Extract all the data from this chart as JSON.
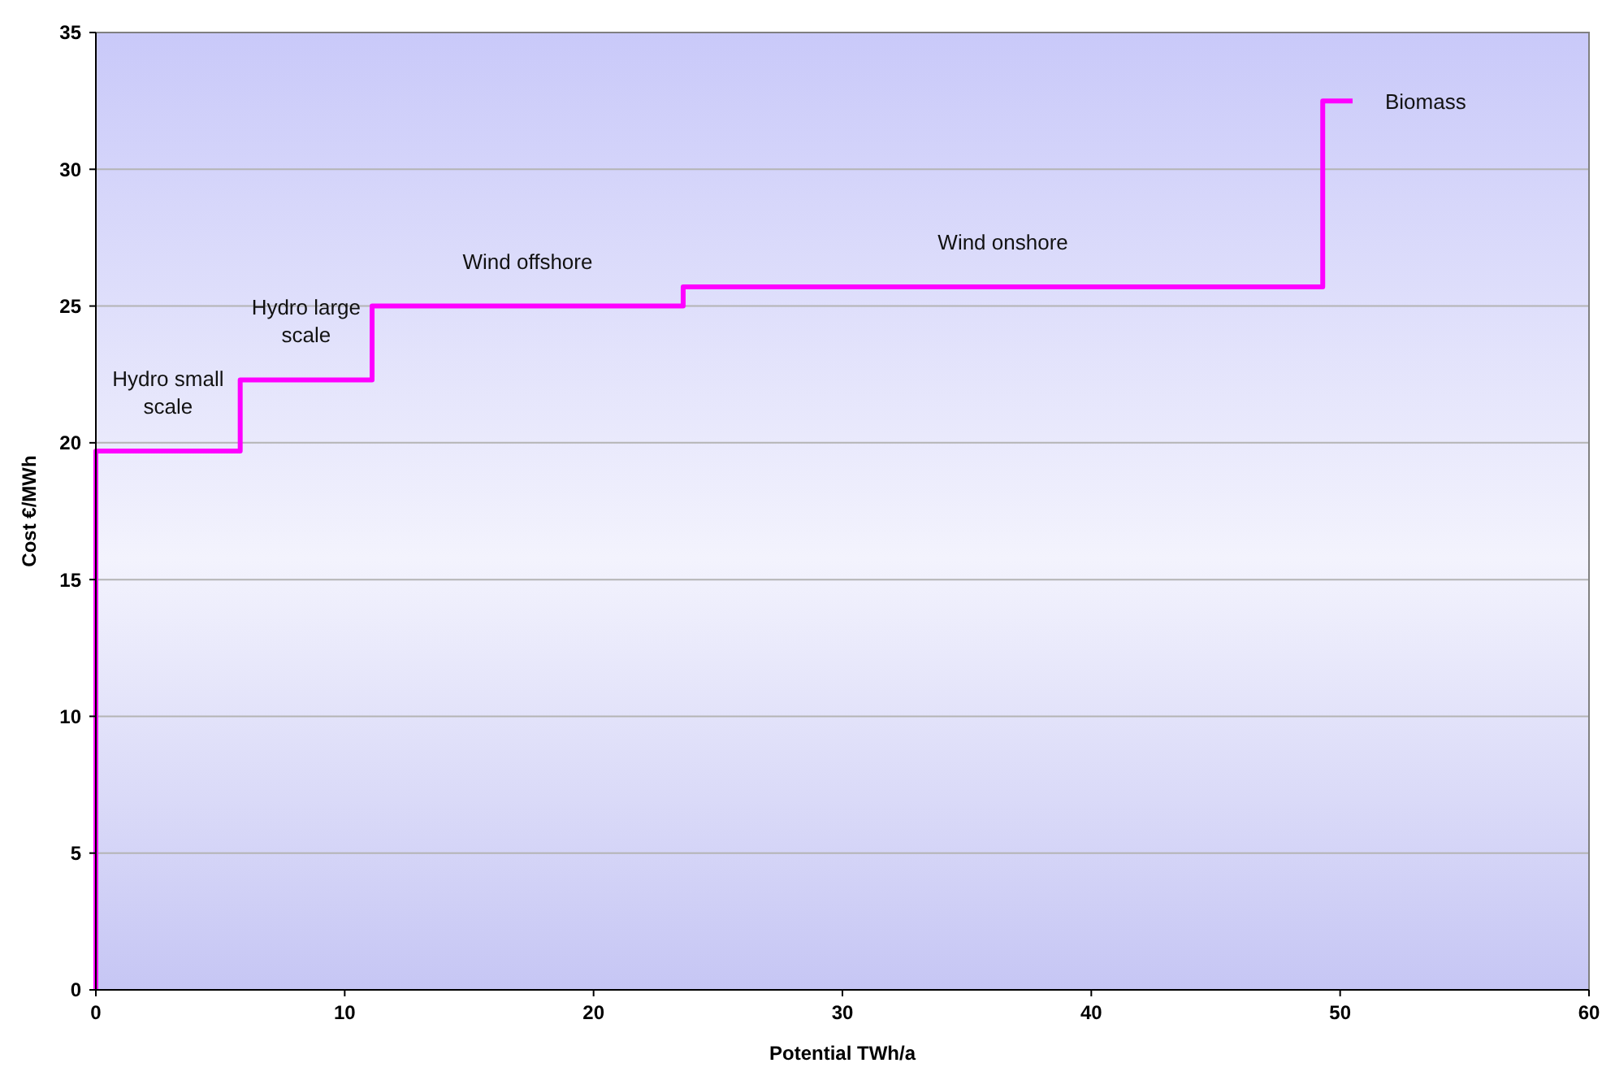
{
  "chart_data": {
    "type": "step",
    "xlabel": "Potential TWh/a",
    "ylabel": "Cost €/MWh",
    "x": [
      0,
      0,
      5.8,
      11.1,
      23.6,
      49.3,
      50.5
    ],
    "series": [
      {
        "color": "#ff00ff",
        "values": [
          0,
          19.7,
          22.3,
          25,
          25.7,
          32.5,
          32.5
        ]
      }
    ],
    "xlim": [
      0,
      60
    ],
    "xticks": [
      0,
      10,
      20,
      30,
      40,
      50,
      60
    ],
    "ylim": [
      0,
      35
    ],
    "yticks": [
      0,
      5,
      10,
      15,
      20,
      25,
      30,
      35
    ],
    "grid": "y",
    "marker": "none",
    "line_style": "solid",
    "annotations": [
      {
        "text": "Hydro small scale",
        "x": 2.9,
        "y": 19.7
      },
      {
        "text": "Hydro large scale",
        "x": 8.45,
        "y": 22.3
      },
      {
        "text": "Wind offshore",
        "x": 17.35,
        "y": 25
      },
      {
        "text": "Wind onshore",
        "x": 36.45,
        "y": 25.7
      },
      {
        "text": "Biomass",
        "x": 50.5,
        "y": 32.5
      }
    ]
  }
}
